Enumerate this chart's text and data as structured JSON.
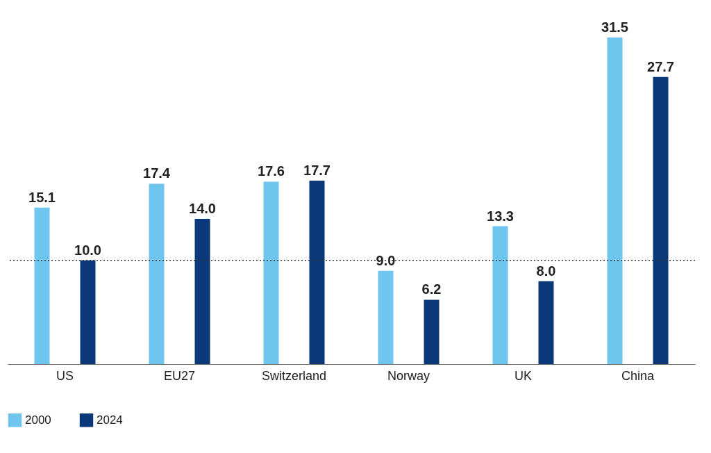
{
  "chart_data": {
    "type": "bar",
    "categories": [
      "US",
      "EU27",
      "Switzerland",
      "Norway",
      "UK",
      "China"
    ],
    "series": [
      {
        "name": "2000",
        "color": "#6ec6ee",
        "values": [
          15.1,
          17.4,
          17.6,
          9.0,
          13.3,
          31.5
        ],
        "value_labels": [
          "15.1",
          "17.4",
          "17.6",
          "9.0",
          "13.3",
          "31.5"
        ]
      },
      {
        "name": "2024",
        "color": "#0a3878",
        "values": [
          10.0,
          14.0,
          17.7,
          6.2,
          8.0,
          27.7
        ],
        "value_labels": [
          "10.0",
          "14.0",
          "17.7",
          "6.2",
          "8.0",
          "27.7"
        ]
      }
    ],
    "ref_lines": [
      {
        "axis": "y",
        "value": 10,
        "line_style": "dotted",
        "color": "#333333"
      }
    ],
    "legend": "bottom left"
  }
}
